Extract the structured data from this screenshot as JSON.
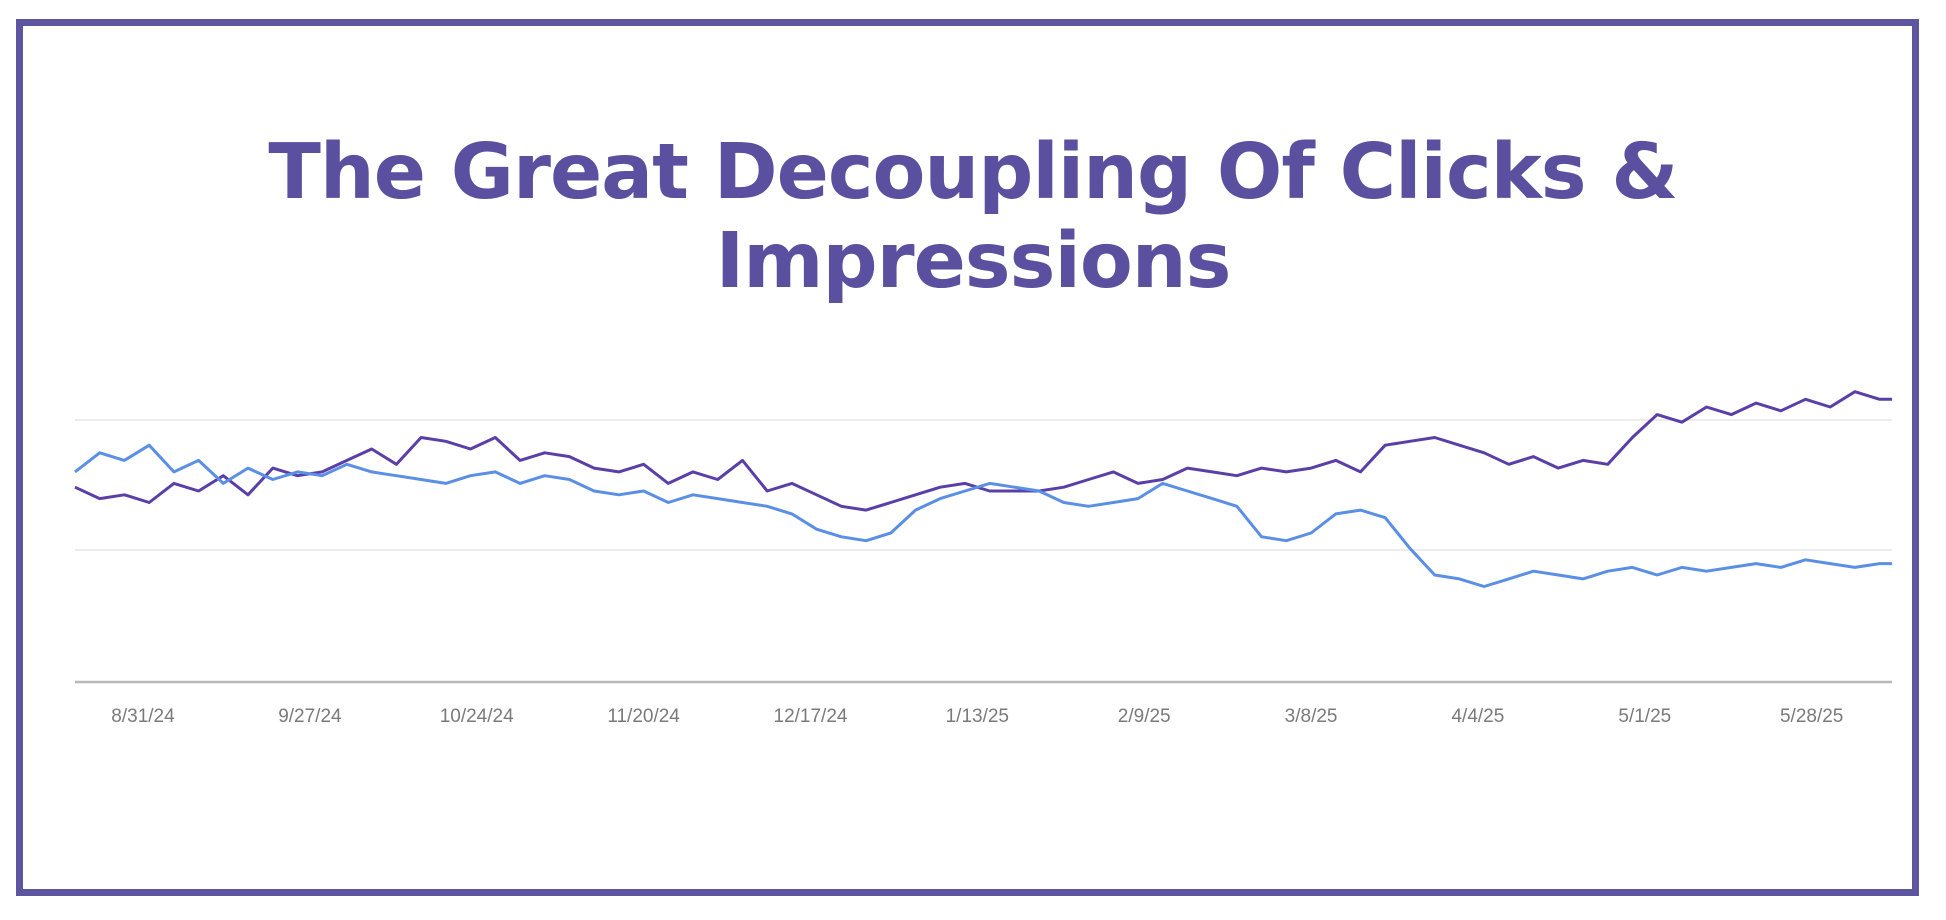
{
  "colors": {
    "frame": "#5e55a0",
    "title": "#5b4f9f",
    "impressions": "#5b3fa8",
    "clicks": "#5b8fe6",
    "grid": "#e6e6e6",
    "axis": "#b8b8b8"
  },
  "chart_data": {
    "type": "line",
    "title": "The Great Decoupling Of Clicks & Impressions",
    "xlabel": "",
    "ylabel": "",
    "x_tick_labels": [
      "8/31/24",
      "9/27/24",
      "10/24/24",
      "11/20/24",
      "12/17/24",
      "1/13/25",
      "2/9/25",
      "3/8/25",
      "4/4/25",
      "5/1/25",
      "5/28/25"
    ],
    "x_range": [
      "8/20/24",
      "6/10/25"
    ],
    "y_axis_labels_shown": false,
    "grid": "horizontal",
    "legend": "none",
    "series": [
      {
        "color": "#5b3fa8",
        "points": [
          [
            "8/20/24",
            51
          ],
          [
            "8/24/24",
            48
          ],
          [
            "8/28/24",
            49
          ],
          [
            "9/1/24",
            47
          ],
          [
            "9/5/24",
            52
          ],
          [
            "9/9/24",
            50
          ],
          [
            "9/13/24",
            54
          ],
          [
            "9/17/24",
            49
          ],
          [
            "9/21/24",
            56
          ],
          [
            "9/25/24",
            54
          ],
          [
            "9/29/24",
            55
          ],
          [
            "10/3/24",
            58
          ],
          [
            "10/7/24",
            61
          ],
          [
            "10/11/24",
            57
          ],
          [
            "10/15/24",
            64
          ],
          [
            "10/19/24",
            63
          ],
          [
            "10/23/24",
            61
          ],
          [
            "10/27/24",
            64
          ],
          [
            "10/31/24",
            58
          ],
          [
            "11/4/24",
            60
          ],
          [
            "11/8/24",
            59
          ],
          [
            "11/12/24",
            56
          ],
          [
            "11/16/24",
            55
          ],
          [
            "11/20/24",
            57
          ],
          [
            "11/24/24",
            52
          ],
          [
            "11/28/24",
            55
          ],
          [
            "12/2/24",
            53
          ],
          [
            "12/6/24",
            58
          ],
          [
            "12/10/24",
            50
          ],
          [
            "12/14/24",
            52
          ],
          [
            "12/18/24",
            49
          ],
          [
            "12/22/24",
            46
          ],
          [
            "12/26/24",
            45
          ],
          [
            "12/30/24",
            47
          ],
          [
            "1/3/25",
            49
          ],
          [
            "1/7/25",
            51
          ],
          [
            "1/11/25",
            52
          ],
          [
            "1/15/25",
            50
          ],
          [
            "1/19/25",
            50
          ],
          [
            "1/23/25",
            50
          ],
          [
            "1/27/25",
            51
          ],
          [
            "1/31/25",
            53
          ],
          [
            "2/4/25",
            55
          ],
          [
            "2/8/25",
            52
          ],
          [
            "2/12/25",
            53
          ],
          [
            "2/16/25",
            56
          ],
          [
            "2/20/25",
            55
          ],
          [
            "2/24/25",
            54
          ],
          [
            "2/28/25",
            56
          ],
          [
            "3/4/25",
            55
          ],
          [
            "3/8/25",
            56
          ],
          [
            "3/12/25",
            58
          ],
          [
            "3/16/25",
            55
          ],
          [
            "3/20/25",
            62
          ],
          [
            "3/24/25",
            63
          ],
          [
            "3/28/25",
            64
          ],
          [
            "4/1/25",
            62
          ],
          [
            "4/5/25",
            60
          ],
          [
            "4/9/25",
            57
          ],
          [
            "4/13/25",
            59
          ],
          [
            "4/17/25",
            56
          ],
          [
            "4/21/25",
            58
          ],
          [
            "4/25/25",
            57
          ],
          [
            "4/29/25",
            64
          ],
          [
            "5/3/25",
            70
          ],
          [
            "5/7/25",
            68
          ],
          [
            "5/11/25",
            72
          ],
          [
            "5/15/25",
            70
          ],
          [
            "5/19/25",
            73
          ],
          [
            "5/23/25",
            71
          ],
          [
            "5/27/25",
            74
          ],
          [
            "5/31/25",
            72
          ],
          [
            "6/4/25",
            76
          ],
          [
            "6/8/25",
            74
          ],
          [
            "6/10/25",
            74
          ]
        ]
      },
      {
        "color": "#5b8fe6",
        "points": [
          [
            "8/20/24",
            55
          ],
          [
            "8/24/24",
            60
          ],
          [
            "8/28/24",
            58
          ],
          [
            "9/1/24",
            62
          ],
          [
            "9/5/24",
            55
          ],
          [
            "9/9/24",
            58
          ],
          [
            "9/13/24",
            52
          ],
          [
            "9/17/24",
            56
          ],
          [
            "9/21/24",
            53
          ],
          [
            "9/25/24",
            55
          ],
          [
            "9/29/24",
            54
          ],
          [
            "10/3/24",
            57
          ],
          [
            "10/7/24",
            55
          ],
          [
            "10/11/24",
            54
          ],
          [
            "10/15/24",
            53
          ],
          [
            "10/19/24",
            52
          ],
          [
            "10/23/24",
            54
          ],
          [
            "10/27/24",
            55
          ],
          [
            "10/31/24",
            52
          ],
          [
            "11/4/24",
            54
          ],
          [
            "11/8/24",
            53
          ],
          [
            "11/12/24",
            50
          ],
          [
            "11/16/24",
            49
          ],
          [
            "11/20/24",
            50
          ],
          [
            "11/24/24",
            47
          ],
          [
            "11/28/24",
            49
          ],
          [
            "12/2/24",
            48
          ],
          [
            "12/6/24",
            47
          ],
          [
            "12/10/24",
            46
          ],
          [
            "12/14/24",
            44
          ],
          [
            "12/18/24",
            40
          ],
          [
            "12/22/24",
            38
          ],
          [
            "12/26/24",
            37
          ],
          [
            "12/30/24",
            39
          ],
          [
            "1/3/25",
            45
          ],
          [
            "1/7/25",
            48
          ],
          [
            "1/11/25",
            50
          ],
          [
            "1/15/25",
            52
          ],
          [
            "1/19/25",
            51
          ],
          [
            "1/23/25",
            50
          ],
          [
            "1/27/25",
            47
          ],
          [
            "1/31/25",
            46
          ],
          [
            "2/4/25",
            47
          ],
          [
            "2/8/25",
            48
          ],
          [
            "2/12/25",
            52
          ],
          [
            "2/16/25",
            50
          ],
          [
            "2/20/25",
            48
          ],
          [
            "2/24/25",
            46
          ],
          [
            "2/28/25",
            38
          ],
          [
            "3/4/25",
            37
          ],
          [
            "3/8/25",
            39
          ],
          [
            "3/12/25",
            44
          ],
          [
            "3/16/25",
            45
          ],
          [
            "3/20/25",
            43
          ],
          [
            "3/24/25",
            35
          ],
          [
            "3/28/25",
            28
          ],
          [
            "4/1/25",
            27
          ],
          [
            "4/5/25",
            25
          ],
          [
            "4/9/25",
            27
          ],
          [
            "4/13/25",
            29
          ],
          [
            "4/17/25",
            28
          ],
          [
            "4/21/25",
            27
          ],
          [
            "4/25/25",
            29
          ],
          [
            "4/29/25",
            30
          ],
          [
            "5/3/25",
            28
          ],
          [
            "5/7/25",
            30
          ],
          [
            "5/11/25",
            29
          ],
          [
            "5/15/25",
            30
          ],
          [
            "5/19/25",
            31
          ],
          [
            "5/23/25",
            30
          ],
          [
            "5/27/25",
            32
          ],
          [
            "5/31/25",
            31
          ],
          [
            "6/4/25",
            30
          ],
          [
            "6/8/25",
            31
          ],
          [
            "6/10/25",
            31
          ]
        ]
      }
    ]
  }
}
